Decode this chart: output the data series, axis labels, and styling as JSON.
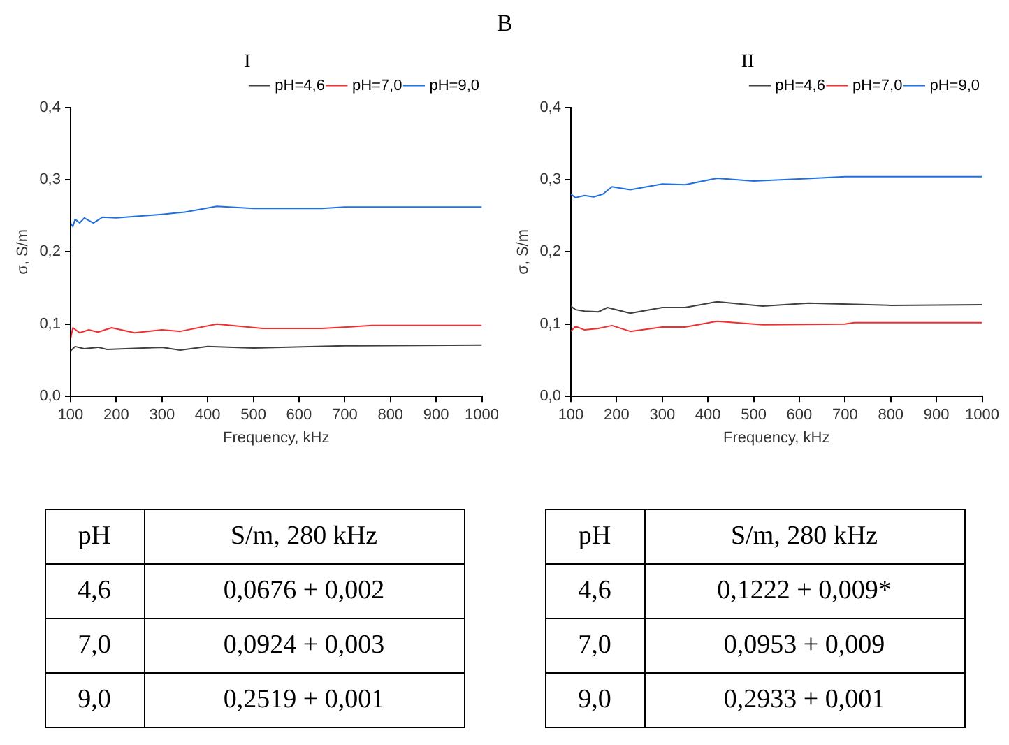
{
  "chart_data": [
    {
      "type": "line",
      "title": "I",
      "xlabel": "Frequency, kHz",
      "ylabel": "σ, S/m",
      "legend": "top right",
      "tick_labels": true,
      "grid": false,
      "marker": "none",
      "line_style": "solid",
      "xlim": [
        100,
        1000
      ],
      "xticks": [
        100,
        200,
        300,
        400,
        500,
        600,
        700,
        800,
        900,
        1000
      ],
      "ylim": [
        0,
        0.4
      ],
      "yticks": [
        {
          "value": 0,
          "label": "0,0"
        },
        {
          "value": 0.1,
          "label": "0,1"
        },
        {
          "value": 0.2,
          "label": "0,2"
        },
        {
          "value": 0.3,
          "label": "0,3"
        },
        {
          "value": 0.4,
          "label": "0,4"
        }
      ],
      "series": [
        {
          "name": "pH=4,6",
          "color": "#404040",
          "x": [
            100,
            110,
            130,
            160,
            180,
            300,
            340,
            400,
            500,
            700,
            1000
          ],
          "values": [
            0.063,
            0.069,
            0.066,
            0.068,
            0.065,
            0.068,
            0.064,
            0.069,
            0.067,
            0.07,
            0.071
          ]
        },
        {
          "name": "pH=7,0",
          "color": "#f03030",
          "x": [
            100,
            105,
            120,
            140,
            160,
            190,
            240,
            300,
            340,
            420,
            520,
            650,
            760,
            1000
          ],
          "values": [
            0.08,
            0.095,
            0.088,
            0.092,
            0.089,
            0.095,
            0.088,
            0.092,
            0.09,
            0.1,
            0.094,
            0.094,
            0.098,
            0.098
          ]
        },
        {
          "name": "pH=9,0",
          "color": "#2070e0",
          "x": [
            100,
            105,
            110,
            120,
            130,
            150,
            170,
            200,
            300,
            350,
            420,
            500,
            650,
            700,
            1000
          ],
          "values": [
            0.24,
            0.235,
            0.245,
            0.24,
            0.247,
            0.24,
            0.248,
            0.247,
            0.252,
            0.255,
            0.263,
            0.26,
            0.26,
            0.262,
            0.262
          ]
        }
      ],
      "annotations": [
        "B",
        "pH",
        "S/m, 280 kHz",
        "4,6",
        "0,0676 + 0,002",
        "7,0",
        "0,0924 + 0,003",
        "9,0",
        "0,2519 + 0,001"
      ]
    },
    {
      "type": "line",
      "title": "II",
      "xlabel": "Frequency, kHz",
      "ylabel": "σ, S/m",
      "legend": "top right",
      "tick_labels": true,
      "grid": false,
      "marker": "none",
      "line_style": "solid",
      "xlim": [
        100,
        1000
      ],
      "xticks": [
        100,
        200,
        300,
        400,
        500,
        600,
        700,
        800,
        900,
        1000
      ],
      "ylim": [
        0,
        0.4
      ],
      "yticks": [
        {
          "value": 0,
          "label": "0,0"
        },
        {
          "value": 0.1,
          "label": "0,1"
        },
        {
          "value": 0.2,
          "label": "0,2"
        },
        {
          "value": 0.3,
          "label": "0,3"
        },
        {
          "value": 0.4,
          "label": "0,4"
        }
      ],
      "series": [
        {
          "name": "pH=4,6",
          "color": "#404040",
          "x": [
            100,
            110,
            130,
            160,
            180,
            230,
            300,
            350,
            420,
            520,
            620,
            800,
            1000
          ],
          "values": [
            0.125,
            0.12,
            0.118,
            0.117,
            0.123,
            0.115,
            0.123,
            0.123,
            0.131,
            0.125,
            0.129,
            0.126,
            0.127
          ]
        },
        {
          "name": "pH=7,0",
          "color": "#f03030",
          "x": [
            100,
            110,
            130,
            160,
            190,
            230,
            300,
            350,
            420,
            520,
            700,
            720,
            1000
          ],
          "values": [
            0.09,
            0.097,
            0.092,
            0.094,
            0.098,
            0.09,
            0.096,
            0.096,
            0.104,
            0.099,
            0.1,
            0.102,
            0.102
          ]
        },
        {
          "name": "pH=9,0",
          "color": "#2070e0",
          "x": [
            100,
            110,
            130,
            150,
            170,
            190,
            230,
            300,
            350,
            420,
            500,
            600,
            700,
            1000
          ],
          "values": [
            0.28,
            0.275,
            0.278,
            0.276,
            0.28,
            0.29,
            0.286,
            0.294,
            0.293,
            0.302,
            0.298,
            0.301,
            0.304,
            0.304
          ]
        }
      ],
      "annotations": [
        "pH",
        "S/m, 280 kHz",
        "4,6",
        "0,1222 + 0,009*",
        "7,0",
        "0,0953 + 0,009",
        "9,0",
        "0,2933 + 0,001"
      ]
    }
  ]
}
